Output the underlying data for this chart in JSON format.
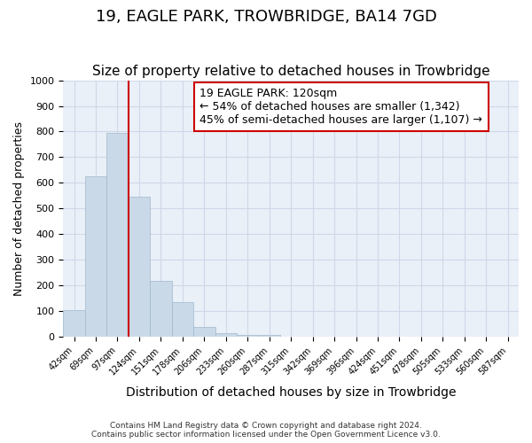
{
  "title": "19, EAGLE PARK, TROWBRIDGE, BA14 7GD",
  "subtitle": "Size of property relative to detached houses in Trowbridge",
  "xlabel": "Distribution of detached houses by size in Trowbridge",
  "ylabel": "Number of detached properties",
  "footer_line1": "Contains HM Land Registry data © Crown copyright and database right 2024.",
  "footer_line2": "Contains public sector information licensed under the Open Government Licence v3.0.",
  "bin_labels": [
    "42sqm",
    "69sqm",
    "97sqm",
    "124sqm",
    "151sqm",
    "178sqm",
    "206sqm",
    "233sqm",
    "260sqm",
    "287sqm",
    "315sqm",
    "342sqm",
    "369sqm",
    "396sqm",
    "424sqm",
    "451sqm",
    "478sqm",
    "505sqm",
    "533sqm",
    "560sqm",
    "587sqm"
  ],
  "bar_values": [
    105,
    625,
    795,
    545,
    220,
    135,
    40,
    15,
    8,
    8,
    0,
    0,
    0,
    0,
    0,
    0,
    0,
    0,
    0,
    0,
    0
  ],
  "bar_color": "#c9d9e8",
  "bar_edge_color": "#a0b8cc",
  "grid_color": "#d0d8e8",
  "background_color": "#eaf0f8",
  "vline_x": 2.5,
  "vline_color": "#cc0000",
  "annotation_text": "19 EAGLE PARK: 120sqm\n← 54% of detached houses are smaller (1,342)\n45% of semi-detached houses are larger (1,107) →",
  "annotation_box_color": "#ffffff",
  "annotation_box_edge": "#cc0000",
  "ylim": [
    0,
    1000
  ],
  "yticks": [
    0,
    100,
    200,
    300,
    400,
    500,
    600,
    700,
    800,
    900,
    1000
  ],
  "title_fontsize": 13,
  "subtitle_fontsize": 11,
  "xlabel_fontsize": 10,
  "ylabel_fontsize": 9,
  "annotation_fontsize": 9
}
